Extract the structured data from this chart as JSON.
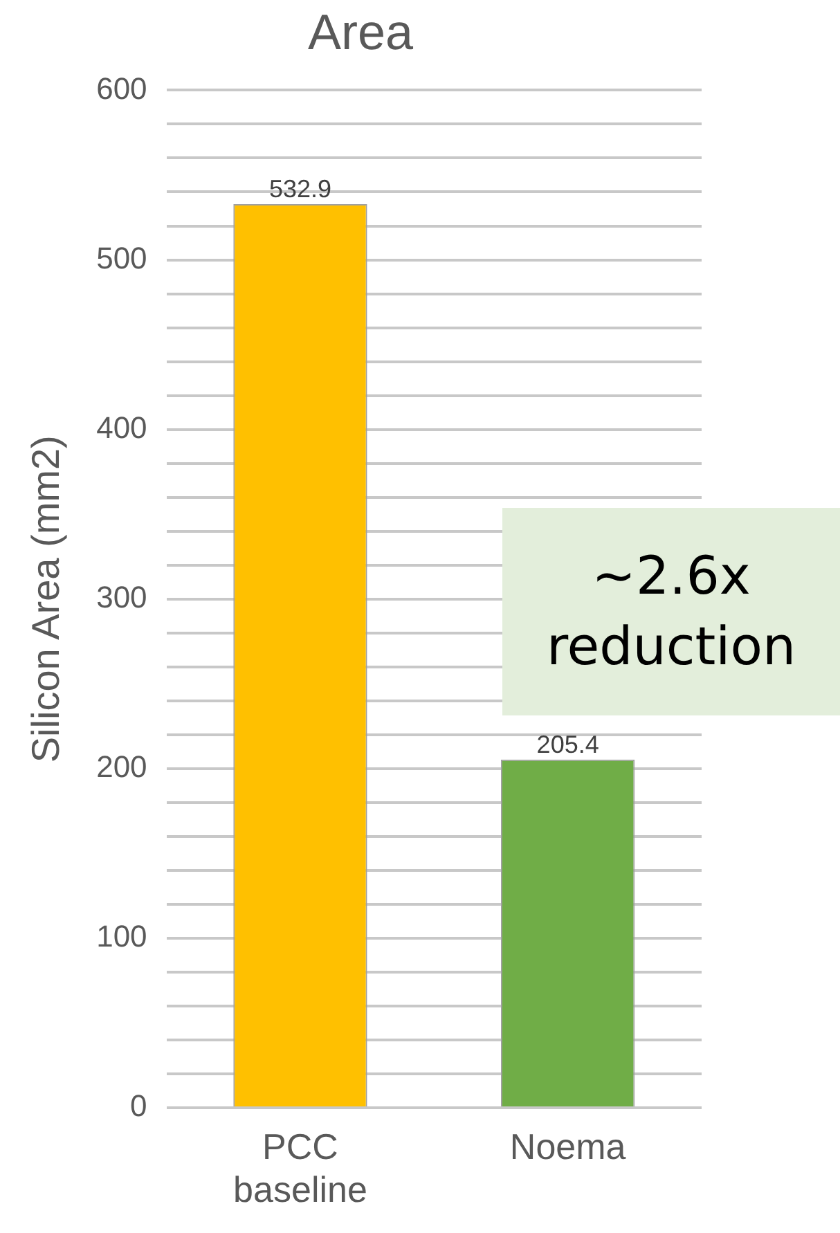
{
  "chart_data": {
    "type": "bar",
    "title": "Area",
    "ylabel": "Silicon Area (mm2)",
    "categories": [
      "PCC baseline",
      "Noema"
    ],
    "values": [
      532.9,
      205.4
    ],
    "colors": [
      "#ffc000",
      "#70ad47"
    ],
    "ylim": [
      0,
      600
    ],
    "yticks": [
      0,
      {
        "value": 20,
        "label": null
      },
      {
        "value": 40,
        "label": null
      },
      {
        "value": 60,
        "label": null
      },
      {
        "value": 80,
        "label": null
      },
      100,
      {
        "value": 120,
        "label": null
      },
      {
        "value": 140,
        "label": null
      },
      {
        "value": 160,
        "label": null
      },
      {
        "value": 180,
        "label": null
      },
      200,
      {
        "value": 220,
        "label": null
      },
      {
        "value": 240,
        "label": null
      },
      {
        "value": 260,
        "label": null
      },
      {
        "value": 280,
        "label": null
      },
      300,
      {
        "value": 320,
        "label": null
      },
      {
        "value": 340,
        "label": null
      },
      {
        "value": 360,
        "label": null
      },
      {
        "value": 380,
        "label": null
      },
      400,
      {
        "value": 420,
        "label": null
      },
      {
        "value": 440,
        "label": null
      },
      {
        "value": 460,
        "label": null
      },
      {
        "value": 480,
        "label": null
      },
      500,
      {
        "value": 520,
        "label": null
      },
      {
        "value": 540,
        "label": null
      },
      {
        "value": 560,
        "label": null
      },
      {
        "value": 580,
        "label": null
      },
      600
    ],
    "grid": "y",
    "data_labels": true,
    "legend": false,
    "annotations": [
      "~2.6x reduction"
    ]
  }
}
